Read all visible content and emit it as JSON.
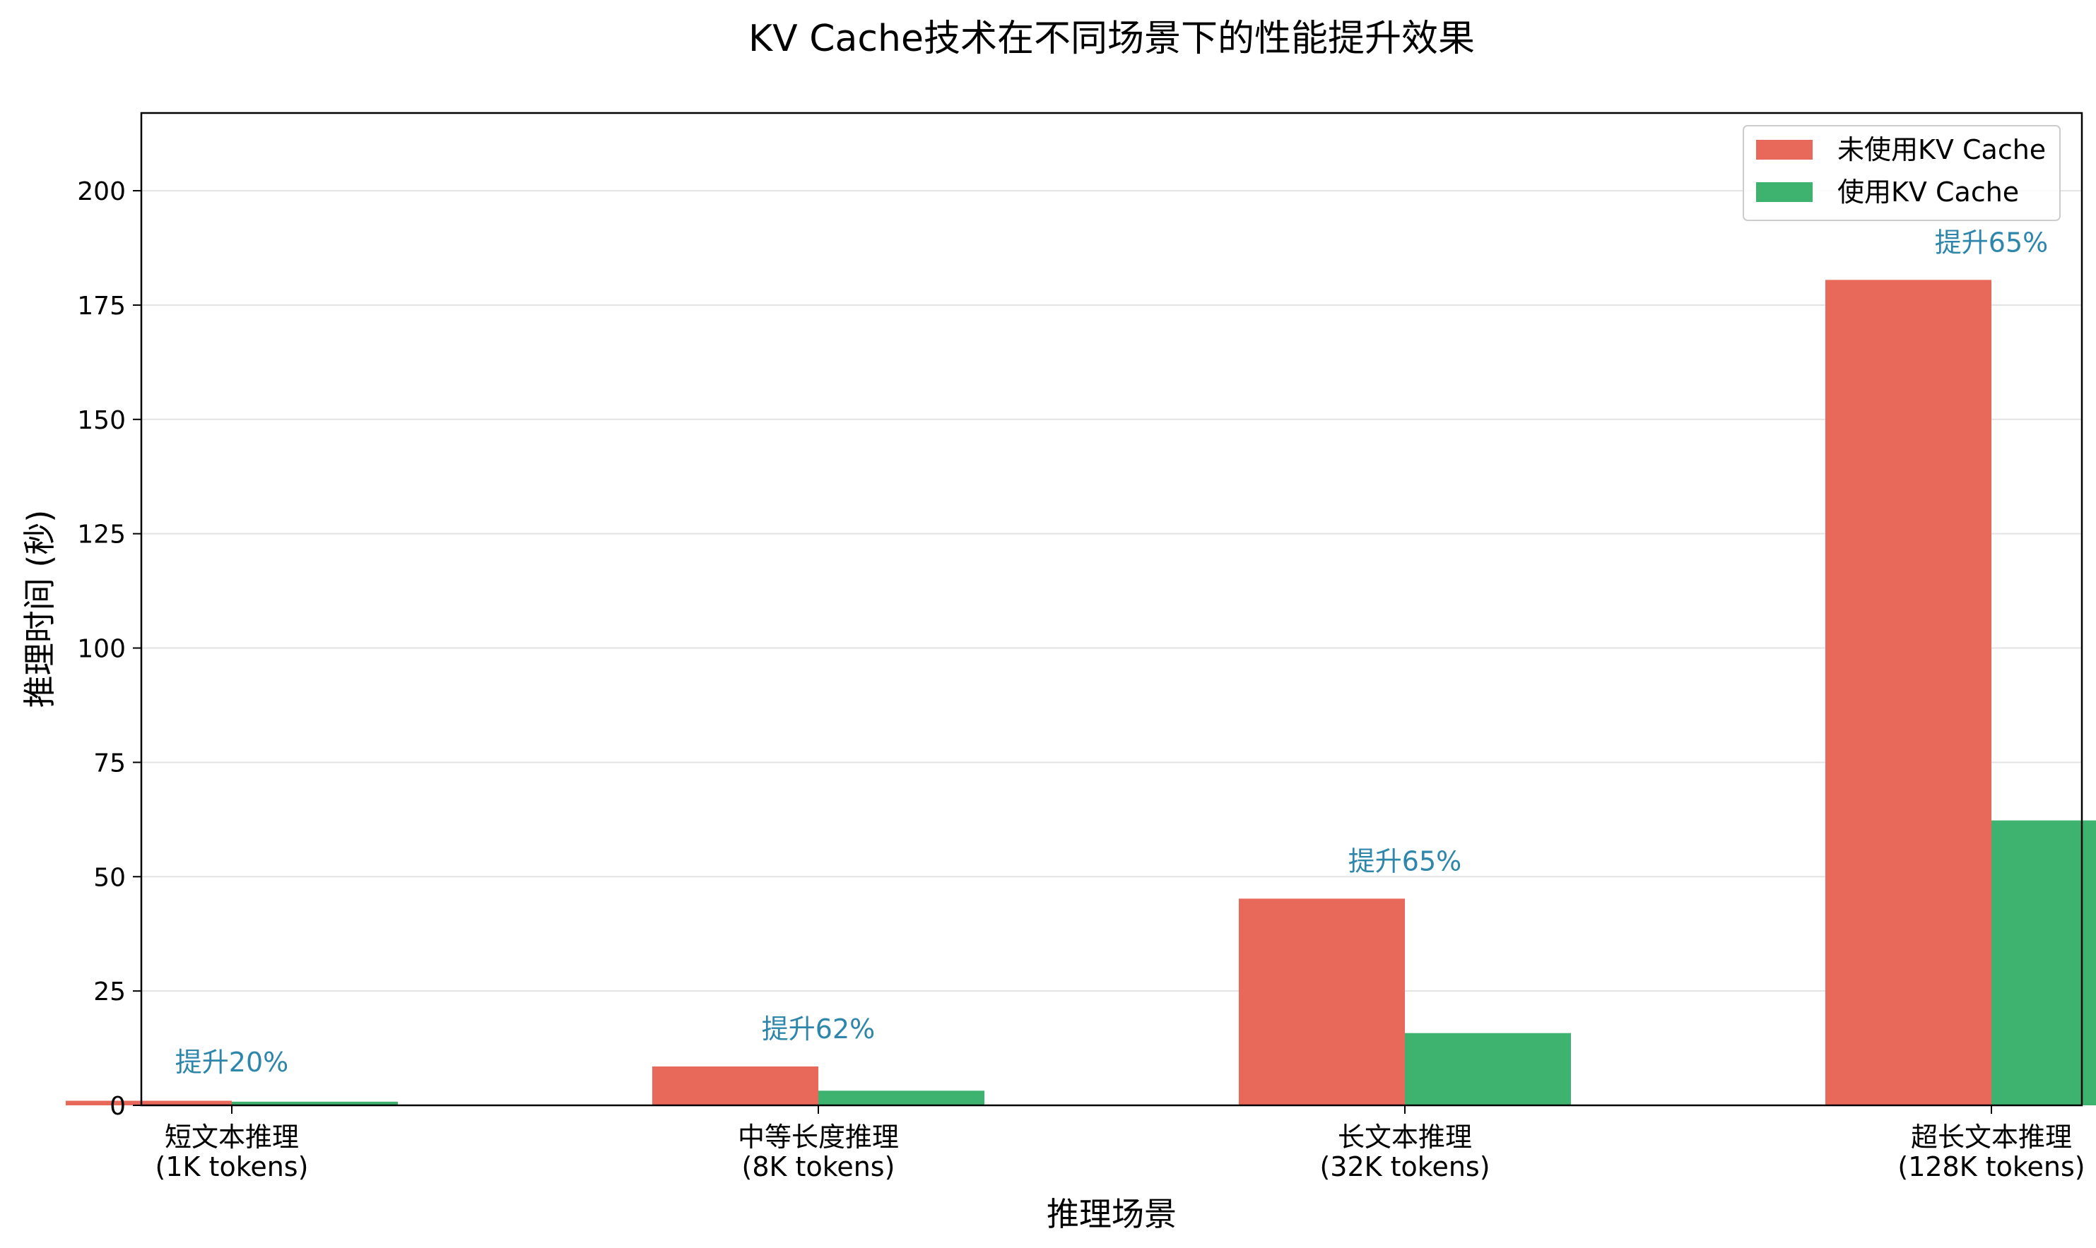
{
  "chart_data": {
    "type": "bar",
    "title": "KV Cache技术在不同场景下的性能提升效果",
    "xlabel": "推理场景",
    "ylabel": "推理时间 (秒)",
    "ylim": [
      0,
      217
    ],
    "yticks": [
      0,
      25,
      50,
      75,
      100,
      125,
      150,
      175,
      200
    ],
    "grid": "y",
    "legend": "top-right",
    "categories": [
      {
        "line1": "短文本推理",
        "line2": "(1K tokens)"
      },
      {
        "line1": "中等长度推理",
        "line2": "(8K tokens)"
      },
      {
        "line1": "长文本推理",
        "line2": "(32K tokens)"
      },
      {
        "line1": "超长文本推理",
        "line2": "(128K tokens)"
      }
    ],
    "series": [
      {
        "name": "未使用KV Cache",
        "color": "#e8685a",
        "values": [
          1.0,
          8.5,
          45.2,
          180.5
        ]
      },
      {
        "name": "使用KV Cache",
        "color": "#3eb370",
        "values": [
          0.8,
          3.2,
          15.8,
          62.3
        ]
      }
    ],
    "annotations": [
      "提升20%",
      "提升62%",
      "提升65%",
      "提升65%"
    ]
  }
}
